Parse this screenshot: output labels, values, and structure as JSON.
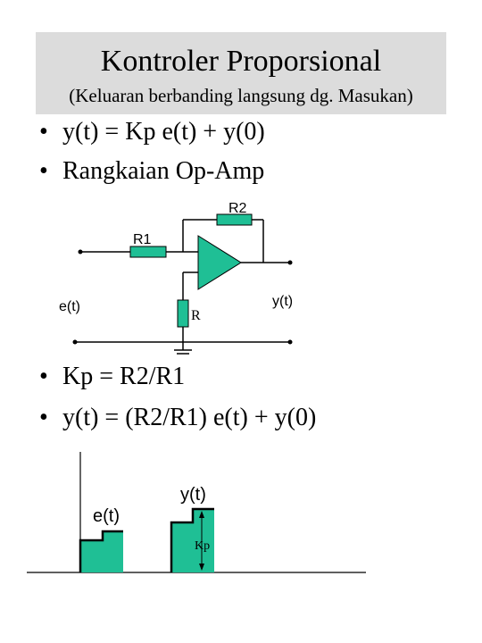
{
  "header": {
    "title": "Kontroler Proporsional",
    "subtitle": "(Keluaran berbanding langsung dg. Masukan)"
  },
  "bullets": {
    "b1": "y(t) = Kp e(t) + y(0)",
    "b2": "Rangkaian Op-Amp",
    "b3": "Kp = R2/R1",
    "b4": "y(t) = (R2/R1) e(t) + y(0)",
    "marker": "•"
  },
  "circuit": {
    "r2_label": "R2",
    "r1_label": "R1",
    "r_label": "R",
    "input_label": "e(t)",
    "output_label": "y(t)"
  },
  "response": {
    "input_label": "e(t)",
    "output_label": "y(t)",
    "gain_label": "Kp"
  },
  "colors": {
    "accent": "#1fbf95",
    "title_bg": "#dcdcdc"
  }
}
